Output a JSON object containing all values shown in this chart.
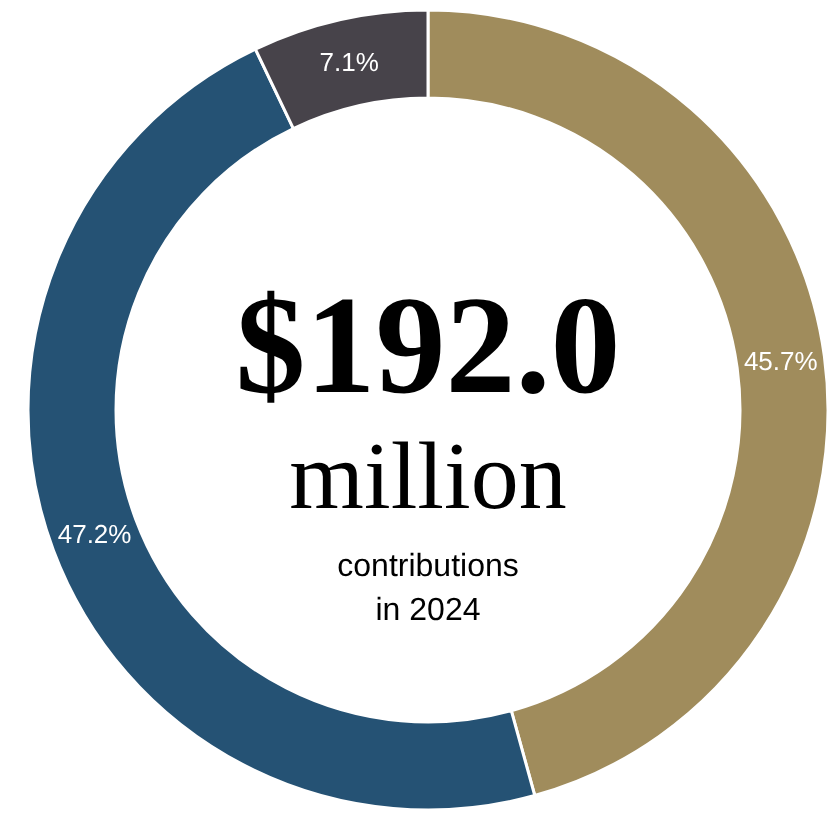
{
  "chart_data": {
    "type": "donut",
    "categories": [
      null,
      null,
      null
    ],
    "values": [
      45.7,
      47.2,
      7.1
    ],
    "colors": [
      "#a08c5c",
      "#255274",
      "#47434a"
    ],
    "value_labels": [
      "45.7%",
      "47.2%",
      "7.1%"
    ],
    "annotations": [
      "$192.0",
      "million",
      "contributions",
      "in 2024"
    ]
  }
}
